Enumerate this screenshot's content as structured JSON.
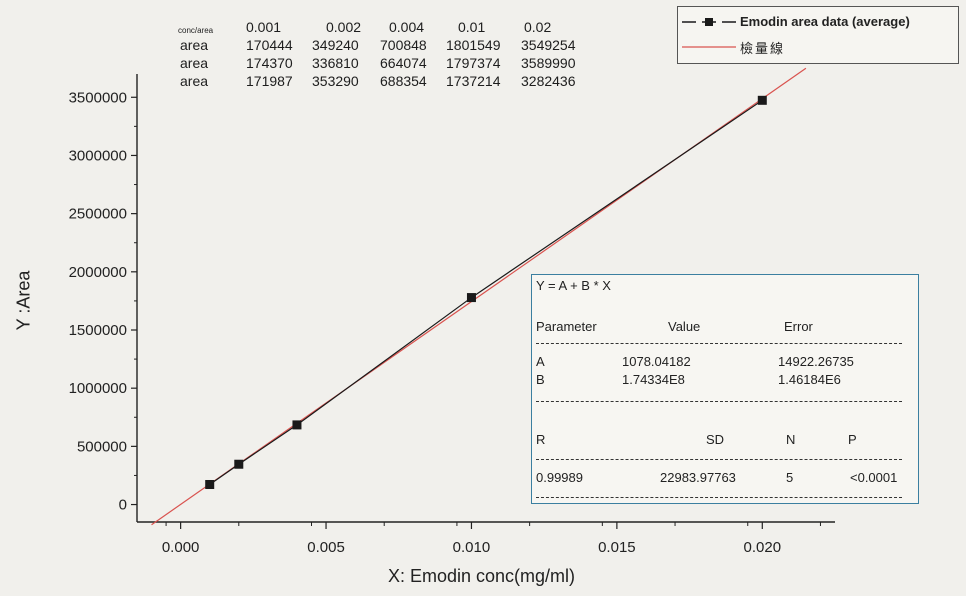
{
  "chart_data": {
    "type": "scatter",
    "xlabel": "X: Emodin conc(mg/ml)",
    "ylabel": "Y :Area",
    "xlim": [
      -0.0015,
      0.0225
    ],
    "ylim": [
      -150000,
      3700000
    ],
    "x_ticks": [
      "0.000",
      "0.005",
      "0.010",
      "0.015",
      "0.020"
    ],
    "y_ticks": [
      "0",
      "500000",
      "1000000",
      "1500000",
      "2000000",
      "2500000",
      "3000000",
      "3500000"
    ],
    "series": [
      {
        "name": "Emodin area data (average)",
        "x": [
          0.001,
          0.002,
          0.004,
          0.01,
          0.02
        ],
        "y": [
          172267,
          346447,
          684425,
          1778712,
          3473893
        ],
        "color": "#1a1a1a",
        "marker": "square"
      },
      {
        "name": "檢量線",
        "type": "line",
        "x": [
          -0.001,
          0.0215
        ],
        "y": [
          -173256,
          3749259
        ],
        "color": "#d9534f"
      }
    ],
    "legend_position": "top-right",
    "grid": false
  },
  "data_table": {
    "header_label": "conc/area",
    "concs": [
      "0.001",
      "0.002",
      "0.004",
      "0.01",
      "0.02"
    ],
    "rows": [
      {
        "label": "area",
        "values": [
          "170444",
          "349240",
          "700848",
          "1801549",
          "3549254"
        ]
      },
      {
        "label": "area",
        "values": [
          "174370",
          "336810",
          "664074",
          "1797374",
          "3589990"
        ]
      },
      {
        "label": "area",
        "values": [
          "171987",
          "353290",
          "688354",
          "1737214",
          "3282436"
        ]
      }
    ]
  },
  "fit_box": {
    "equation": "Y = A + B * X",
    "col_parameter": "Parameter",
    "col_value": "Value",
    "col_error": "Error",
    "a_name": "A",
    "a_value": "1078.04182",
    "a_error": "14922.26735",
    "b_name": "B",
    "b_value": "1.74334E8",
    "b_error": "1.46184E6",
    "stat_r": "R",
    "stat_sd": "SD",
    "stat_n": "N",
    "stat_p": "P",
    "r_value": "0.99989",
    "sd_value": "22983.97763",
    "n_value": "5",
    "p_value": "<0.0001"
  }
}
